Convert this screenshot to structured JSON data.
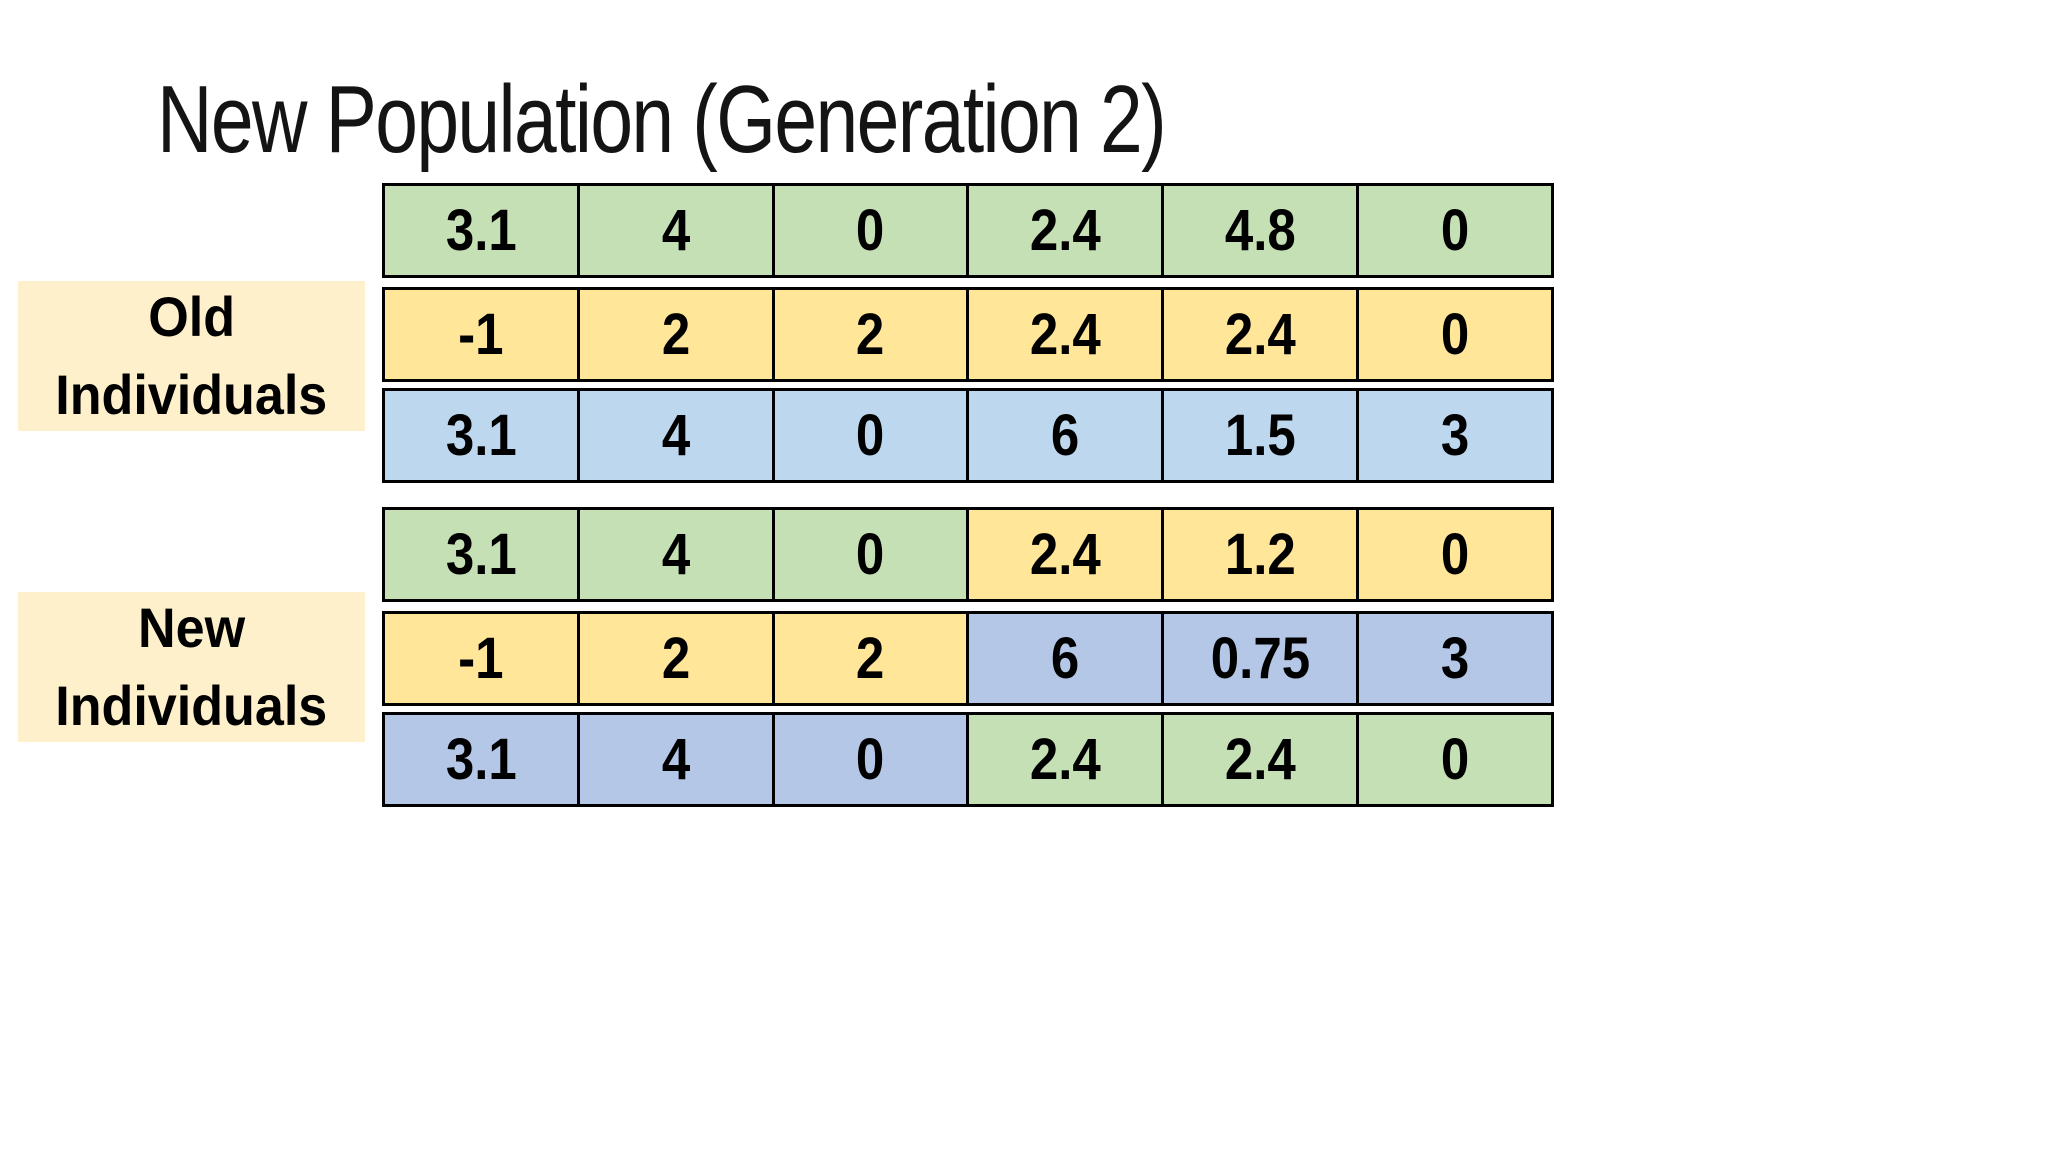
{
  "title": "New Population (Generation 2)",
  "colors": {
    "green": "#C5E0B4",
    "yellow": "#FFE699",
    "sky_blue": "#BDD7EE",
    "periwinkle": "#B4C7E7",
    "label_bg": "#FDF0CB",
    "border": "#000000",
    "text": "#000000"
  },
  "group_labels": [
    {
      "id": "old",
      "lines": [
        "Old",
        "Individuals"
      ]
    },
    {
      "id": "new",
      "lines": [
        "New",
        "Individuals"
      ]
    }
  ],
  "rows": [
    {
      "group": "old",
      "cells": [
        {
          "value": "3.1",
          "color": "green"
        },
        {
          "value": "4",
          "color": "green"
        },
        {
          "value": "0",
          "color": "green"
        },
        {
          "value": "2.4",
          "color": "green"
        },
        {
          "value": "4.8",
          "color": "green"
        },
        {
          "value": "0",
          "color": "green"
        }
      ]
    },
    {
      "group": "old",
      "cells": [
        {
          "value": "-1",
          "color": "yellow"
        },
        {
          "value": "2",
          "color": "yellow"
        },
        {
          "value": "2",
          "color": "yellow"
        },
        {
          "value": "2.4",
          "color": "yellow"
        },
        {
          "value": "2.4",
          "color": "yellow"
        },
        {
          "value": "0",
          "color": "yellow"
        }
      ]
    },
    {
      "group": "old",
      "cells": [
        {
          "value": "3.1",
          "color": "sky_blue"
        },
        {
          "value": "4",
          "color": "sky_blue"
        },
        {
          "value": "0",
          "color": "sky_blue"
        },
        {
          "value": "6",
          "color": "sky_blue"
        },
        {
          "value": "1.5",
          "color": "sky_blue"
        },
        {
          "value": "3",
          "color": "sky_blue"
        }
      ]
    },
    {
      "group": "new",
      "cells": [
        {
          "value": "3.1",
          "color": "green"
        },
        {
          "value": "4",
          "color": "green"
        },
        {
          "value": "0",
          "color": "green"
        },
        {
          "value": "2.4",
          "color": "yellow"
        },
        {
          "value": "1.2",
          "color": "yellow"
        },
        {
          "value": "0",
          "color": "yellow"
        }
      ]
    },
    {
      "group": "new",
      "cells": [
        {
          "value": "-1",
          "color": "yellow"
        },
        {
          "value": "2",
          "color": "yellow"
        },
        {
          "value": "2",
          "color": "yellow"
        },
        {
          "value": "6",
          "color": "periwinkle"
        },
        {
          "value": "0.75",
          "color": "periwinkle"
        },
        {
          "value": "3",
          "color": "periwinkle"
        }
      ]
    },
    {
      "group": "new",
      "cells": [
        {
          "value": "3.1",
          "color": "periwinkle"
        },
        {
          "value": "4",
          "color": "periwinkle"
        },
        {
          "value": "0",
          "color": "periwinkle"
        },
        {
          "value": "2.4",
          "color": "green"
        },
        {
          "value": "2.4",
          "color": "green"
        },
        {
          "value": "0",
          "color": "green"
        }
      ]
    }
  ]
}
